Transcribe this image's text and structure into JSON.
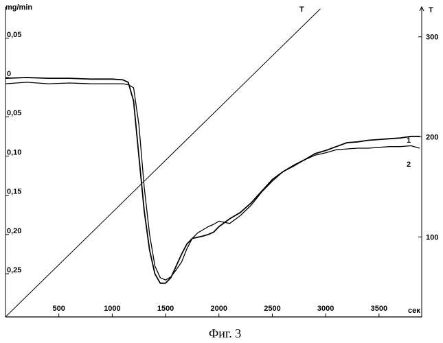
{
  "caption": "Фиг. 3",
  "chart_data": {
    "type": "line",
    "title": "",
    "xlabel": "сек",
    "ylabel_left": "mg/min",
    "ylabel_right": "T",
    "x_ticks": [
      500,
      1000,
      1500,
      2000,
      2500,
      3000,
      3500
    ],
    "x_tick_labels": [
      "500",
      "1000",
      "1500",
      "2000",
      "2500",
      "3000",
      "3500"
    ],
    "xlim": [
      0,
      3900
    ],
    "y_left_ticks": [
      0.05,
      0,
      -0.05,
      -0.1,
      -0.15,
      -0.2,
      -0.25
    ],
    "y_left_tick_labels": [
      "0,05",
      "0",
      "0,05",
      "0,10",
      "0,15",
      "0,20",
      "0,25"
    ],
    "y_left_lim": [
      -0.305,
      0.09
    ],
    "y_right_ticks": [
      300,
      200,
      100
    ],
    "y_right_tick_labels": [
      "300",
      "200",
      "100"
    ],
    "y_right_lim": [
      20,
      330
    ],
    "grid": false,
    "series": [
      {
        "name": "1",
        "axis": "left",
        "x": [
          0,
          200,
          400,
          600,
          800,
          1000,
          1100,
          1150,
          1200,
          1250,
          1300,
          1350,
          1400,
          1450,
          1500,
          1550,
          1600,
          1650,
          1700,
          1750,
          1800,
          1850,
          1900,
          1950,
          2000,
          2100,
          2200,
          2300,
          2400,
          2500,
          2600,
          2700,
          2800,
          2900,
          3000,
          3100,
          3200,
          3300,
          3400,
          3500,
          3600,
          3700,
          3800,
          3880
        ],
        "values": [
          -0.001,
          0.0,
          -0.001,
          -0.001,
          -0.002,
          -0.002,
          -0.003,
          -0.006,
          -0.03,
          -0.1,
          -0.17,
          -0.22,
          -0.25,
          -0.262,
          -0.262,
          -0.255,
          -0.24,
          -0.225,
          -0.212,
          -0.205,
          -0.2035,
          -0.202,
          -0.2,
          -0.197,
          -0.19,
          -0.18,
          -0.172,
          -0.16,
          -0.145,
          -0.13,
          -0.12,
          -0.112,
          -0.105,
          -0.097,
          -0.093,
          -0.088,
          -0.083,
          -0.082,
          -0.08,
          -0.079,
          -0.078,
          -0.077,
          -0.075,
          -0.075
        ]
      },
      {
        "name": "2",
        "axis": "left",
        "x": [
          0,
          200,
          400,
          600,
          800,
          1000,
          1100,
          1150,
          1200,
          1250,
          1300,
          1350,
          1400,
          1450,
          1500,
          1550,
          1600,
          1650,
          1700,
          1750,
          1800,
          1850,
          1900,
          1950,
          2000,
          2100,
          2200,
          2300,
          2400,
          2500,
          2600,
          2700,
          2800,
          2900,
          3000,
          3100,
          3200,
          3300,
          3400,
          3500,
          3600,
          3700,
          3800,
          3880
        ],
        "values": [
          -0.008,
          -0.006,
          -0.008,
          -0.007,
          -0.008,
          -0.008,
          -0.008,
          -0.009,
          -0.013,
          -0.06,
          -0.14,
          -0.2,
          -0.24,
          -0.255,
          -0.258,
          -0.254,
          -0.245,
          -0.235,
          -0.218,
          -0.205,
          -0.198,
          -0.194,
          -0.19,
          -0.187,
          -0.183,
          -0.186,
          -0.176,
          -0.163,
          -0.146,
          -0.132,
          -0.12,
          -0.113,
          -0.105,
          -0.099,
          -0.096,
          -0.092,
          -0.091,
          -0.09,
          -0.09,
          -0.089,
          -0.088,
          -0.088,
          -0.087,
          -0.09
        ]
      },
      {
        "name": "T",
        "axis": "right",
        "x": [
          0,
          2950
        ],
        "values": [
          20,
          328
        ]
      }
    ]
  }
}
